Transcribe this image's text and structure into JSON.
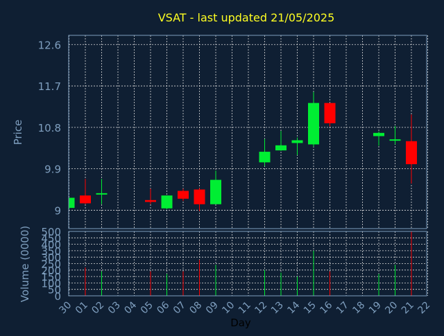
{
  "chart_data": {
    "type": "candlestick",
    "title": "VSAT - last updated 21/05/2025",
    "xlabel": "Day",
    "x_tick_labels": [
      "30",
      "01",
      "02",
      "03",
      "04",
      "05",
      "06",
      "07",
      "08",
      "09",
      "10",
      "11",
      "12",
      "13",
      "14",
      "15",
      "16",
      "17",
      "18",
      "19",
      "20",
      "21",
      "22"
    ],
    "price_panel": {
      "ylabel": "Price",
      "ylim": [
        8.6,
        12.8
      ],
      "yticks": [
        9,
        9.9,
        10.8,
        11.7,
        12.6
      ],
      "ytick_labels": [
        "9",
        "9.9",
        "10.8",
        "11.7",
        "12.6"
      ],
      "grid": true
    },
    "volume_panel": {
      "ylabel": "Volume (0000)",
      "ylim": [
        0,
        500
      ],
      "yticks": [
        0,
        50,
        100,
        150,
        200,
        250,
        300,
        350,
        400,
        450,
        500
      ],
      "ytick_labels": [
        "0",
        "50",
        "100",
        "150",
        "200",
        "250",
        "300",
        "350",
        "400",
        "450",
        "500"
      ],
      "grid": true
    },
    "candles": [
      {
        "day": "30",
        "open": 9.05,
        "close": 9.27,
        "high": 9.27,
        "low": 9.02,
        "volume": 0
      },
      {
        "day": "01",
        "open": 9.32,
        "close": 9.15,
        "high": 9.68,
        "low": 9.13,
        "volume": 220
      },
      {
        "day": "02",
        "open": 9.34,
        "close": 9.37,
        "high": 9.68,
        "low": 9.13,
        "volume": 190
      },
      {
        "day": "05",
        "open": 9.22,
        "close": 9.18,
        "high": 9.47,
        "low": 9.13,
        "volume": 190
      },
      {
        "day": "06",
        "open": 9.04,
        "close": 9.32,
        "high": 9.32,
        "low": 9.02,
        "volume": 170
      },
      {
        "day": "07",
        "open": 9.42,
        "close": 9.25,
        "high": 9.47,
        "low": 9.2,
        "volume": 190
      },
      {
        "day": "08",
        "open": 9.45,
        "close": 9.13,
        "high": 9.48,
        "low": 8.98,
        "volume": 280
      },
      {
        "day": "09",
        "open": 9.13,
        "close": 9.66,
        "high": 9.86,
        "low": 9.13,
        "volume": 240
      },
      {
        "day": "12",
        "open": 10.04,
        "close": 10.27,
        "high": 10.55,
        "low": 9.96,
        "volume": 200
      },
      {
        "day": "13",
        "open": 10.3,
        "close": 10.41,
        "high": 10.72,
        "low": 10.29,
        "volume": 180
      },
      {
        "day": "14",
        "open": 10.46,
        "close": 10.52,
        "high": 10.58,
        "low": 10.2,
        "volume": 150
      },
      {
        "day": "15",
        "open": 10.43,
        "close": 11.33,
        "high": 11.57,
        "low": 10.38,
        "volume": 350
      },
      {
        "day": "16",
        "open": 11.33,
        "close": 10.89,
        "high": 11.33,
        "low": 10.82,
        "volume": 190
      },
      {
        "day": "19",
        "open": 10.61,
        "close": 10.68,
        "high": 10.71,
        "low": 10.4,
        "volume": 170
      },
      {
        "day": "20",
        "open": 10.51,
        "close": 10.54,
        "high": 10.83,
        "low": 10.43,
        "volume": 240
      },
      {
        "day": "21",
        "open": 10.5,
        "close": 10.0,
        "high": 11.08,
        "low": 9.58,
        "volume": 500
      }
    ],
    "colors": {
      "up": "#00ee33",
      "down": "#ff0000",
      "background": "#0f1f33",
      "grid": "#dddddd",
      "axis_text": "#7f9fbf",
      "title_text": "#ffff22",
      "xlabel_text": "#000000"
    }
  }
}
